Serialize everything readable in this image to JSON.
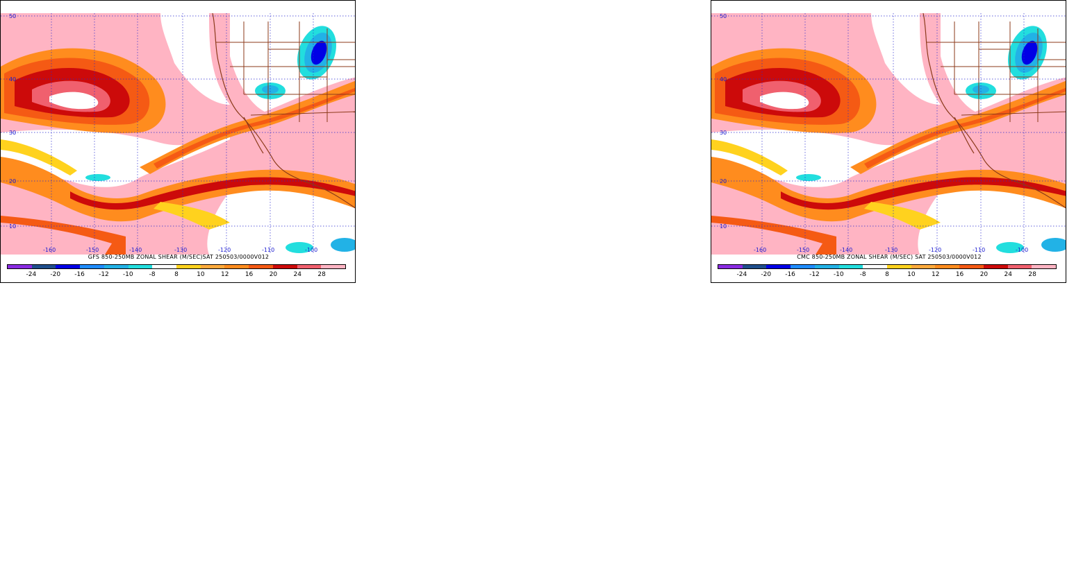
{
  "panels": [
    {
      "id": "left",
      "caption": "GFS 850-250MB ZONAL SHEAR (M/SEC)SAT 250503/0000V012"
    },
    {
      "id": "right",
      "caption": "CMC 850-250MB ZONAL SHEAR (M/SEC) SAT 250503/0000V012"
    }
  ],
  "map": {
    "lat_labels": [
      "50",
      "40",
      "30",
      "20",
      "10"
    ],
    "lon_labels": [
      "-160",
      "-150",
      "-140",
      "-130",
      "-120",
      "-110",
      "-100"
    ],
    "grid": true,
    "coastline_color": "#8b3a1a",
    "grid_color": "#2a2ad0"
  },
  "colorbar": {
    "colors": [
      "#8a2be2",
      "#1f4e8c",
      "#0000e6",
      "#1e8cff",
      "#22b2e6",
      "#22dede",
      "#ffffff",
      "#ffd21e",
      "#ffaa3c",
      "#ff8c1e",
      "#f55a14",
      "#cc0a0a",
      "#f0606e",
      "#ffb4c3"
    ],
    "labels": [
      "-24",
      "-20",
      "-16",
      "-12",
      "-10",
      "-8",
      "8",
      "10",
      "12",
      "16",
      "20",
      "24",
      "28"
    ]
  }
}
